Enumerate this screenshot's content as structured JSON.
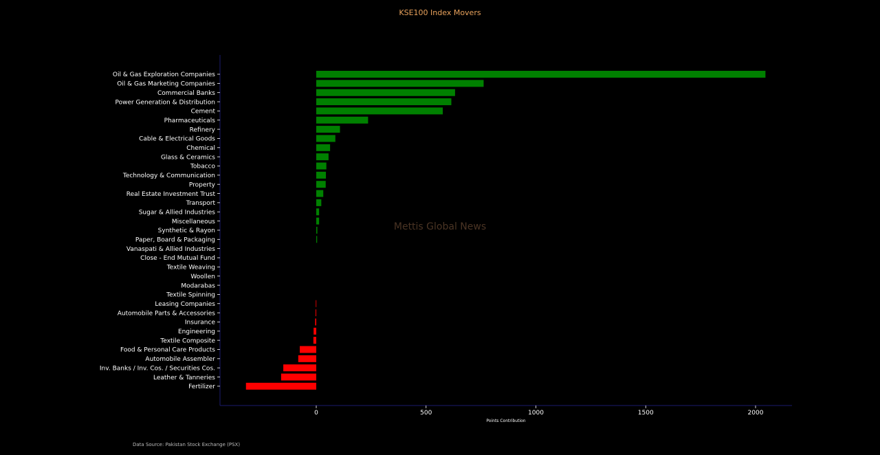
{
  "chart_data": {
    "type": "bar",
    "orientation": "horizontal",
    "title": "KSE100 Index Movers",
    "xlabel": "Points Contribution",
    "ylabel": "",
    "xlim": [
      -440,
      2160
    ],
    "xticks": [
      0,
      500,
      1000,
      1500,
      2000
    ],
    "grid": false,
    "watermark": "Mettis Global News",
    "source": "Data Source: Pakistan Stock Exchange (PSX)",
    "colors": {
      "positive": "#008000",
      "negative": "#ff0000",
      "background": "#000000",
      "axis": "#1a1a6e",
      "title": "#e8a25c"
    },
    "categories": [
      "Oil & Gas Exploration Companies",
      "Oil & Gas Marketing Companies",
      "Commercial Banks",
      "Power Generation & Distribution",
      "Cement",
      "Pharmaceuticals",
      "Refinery",
      "Cable & Electrical Goods",
      "Chemical",
      "Glass & Ceramics",
      "Tobacco",
      "Technology & Communication",
      "Property",
      "Real Estate Investment Trust",
      "Transport",
      "Sugar & Allied Industries",
      "Miscellaneous",
      "Synthetic & Rayon",
      "Paper, Board & Packaging",
      "Vanaspati & Allied Industries",
      "Close - End Mutual Fund",
      "Textile Weaving",
      "Woollen",
      "Modarabas",
      "Textile Spinning",
      "Leasing Companies",
      "Automobile Parts & Accessories",
      "Insurance",
      "Engineering",
      "Textile Composite",
      "Food & Personal Care Products",
      "Automobile Assembler",
      "Inv. Banks / Inv. Cos. / Securities Cos.",
      "Leather & Tanneries",
      "Fertilizer"
    ],
    "values": [
      2045,
      762,
      632,
      615,
      576,
      236,
      108,
      87,
      63,
      56,
      46,
      44,
      43,
      32,
      23,
      13,
      13,
      5,
      4,
      0,
      0,
      0,
      0,
      0,
      0,
      -2,
      -3,
      -5,
      -12,
      -13,
      -75,
      -82,
      -150,
      -160,
      -320
    ]
  }
}
